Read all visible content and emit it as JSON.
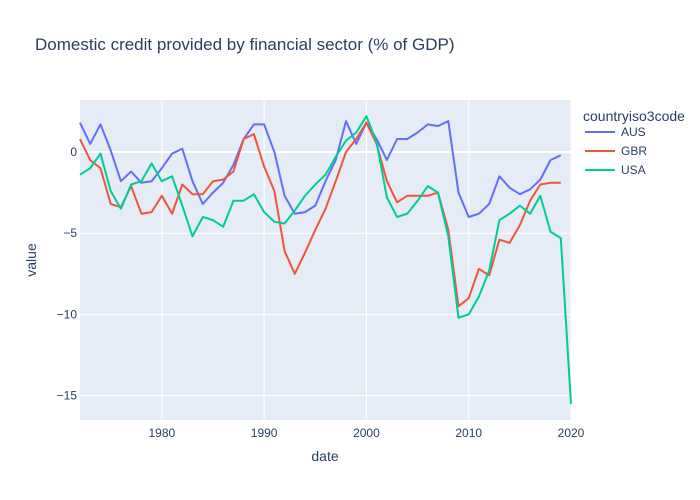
{
  "chart_data": {
    "type": "line",
    "title": "Domestic credit provided by financial sector (% of GDP)",
    "xlabel": "date",
    "ylabel": "value",
    "xlim": [
      1972,
      2020
    ],
    "ylim": [
      -16.5,
      3.2
    ],
    "x_ticks": [
      1980,
      1990,
      2000,
      2010,
      2020
    ],
    "y_ticks": [
      0,
      -5,
      -10,
      -15
    ],
    "grid": true,
    "legend": {
      "title": "countryiso3code",
      "placement": "top-right"
    },
    "plot_background": "#e5ecf6",
    "series": [
      {
        "name": "AUS",
        "color": "#636efa",
        "x": [
          1972,
          1973,
          1974,
          1975,
          1976,
          1977,
          1978,
          1979,
          1980,
          1981,
          1982,
          1983,
          1984,
          1985,
          1986,
          1987,
          1988,
          1989,
          1990,
          1991,
          1992,
          1993,
          1994,
          1995,
          1996,
          1997,
          1998,
          1999,
          2000,
          2001,
          2002,
          2003,
          2004,
          2005,
          2006,
          2007,
          2008,
          2009,
          2010,
          2011,
          2012,
          2013,
          2014,
          2015,
          2016,
          2017,
          2018,
          2019
        ],
        "y": [
          1.8,
          0.5,
          1.7,
          0.1,
          -1.8,
          -1.2,
          -1.9,
          -1.8,
          -1.0,
          -0.1,
          0.2,
          -1.8,
          -3.2,
          -2.5,
          -1.9,
          -0.8,
          0.8,
          1.7,
          1.7,
          0.0,
          -2.7,
          -3.8,
          -3.7,
          -3.3,
          -1.8,
          -0.5,
          1.9,
          0.5,
          1.8,
          0.8,
          -0.5,
          0.8,
          0.8,
          1.2,
          1.7,
          1.6,
          1.9,
          -2.5,
          -4.0,
          -3.8,
          -3.2,
          -1.5,
          -2.2,
          -2.6,
          -2.3,
          -1.7,
          -0.5,
          -0.2
        ]
      },
      {
        "name": "GBR",
        "color": "#ef553b",
        "x": [
          1972,
          1973,
          1974,
          1975,
          1976,
          1977,
          1978,
          1979,
          1980,
          1981,
          1982,
          1983,
          1984,
          1985,
          1986,
          1987,
          1988,
          1989,
          1990,
          1991,
          1992,
          1993,
          1994,
          1995,
          1996,
          1997,
          1998,
          1999,
          2000,
          2001,
          2002,
          2003,
          2004,
          2005,
          2006,
          2007,
          2008,
          2009,
          2010,
          2011,
          2012,
          2013,
          2014,
          2015,
          2016,
          2017,
          2018,
          2019
        ],
        "y": [
          0.8,
          -0.5,
          -1.0,
          -3.2,
          -3.4,
          -2.1,
          -3.8,
          -3.7,
          -2.7,
          -3.8,
          -2.0,
          -2.6,
          -2.6,
          -1.8,
          -1.7,
          -1.2,
          0.8,
          1.1,
          -0.9,
          -2.4,
          -6.1,
          -7.5,
          -6.2,
          -4.8,
          -3.5,
          -1.8,
          0.0,
          0.8,
          1.8,
          0.5,
          -1.8,
          -3.1,
          -2.7,
          -2.7,
          -2.7,
          -2.5,
          -4.8,
          -9.5,
          -9.0,
          -7.2,
          -7.6,
          -5.4,
          -5.6,
          -4.5,
          -3.0,
          -2.0,
          -1.9,
          -1.9
        ]
      },
      {
        "name": "USA",
        "color": "#00cc96",
        "x": [
          1972,
          1973,
          1974,
          1975,
          1976,
          1977,
          1978,
          1979,
          1980,
          1981,
          1982,
          1983,
          1984,
          1985,
          1986,
          1987,
          1988,
          1989,
          1990,
          1991,
          1992,
          1993,
          1994,
          1995,
          1996,
          1997,
          1998,
          1999,
          2000,
          2001,
          2002,
          2003,
          2004,
          2005,
          2006,
          2007,
          2008,
          2009,
          2010,
          2011,
          2012,
          2013,
          2014,
          2015,
          2016,
          2017,
          2018,
          2019,
          2020
        ],
        "y": [
          -1.4,
          -1.0,
          -0.1,
          -2.4,
          -3.5,
          -2.0,
          -1.8,
          -0.7,
          -1.8,
          -1.5,
          -3.3,
          -5.2,
          -4.0,
          -4.2,
          -4.6,
          -3.0,
          -3.0,
          -2.6,
          -3.7,
          -4.3,
          -4.4,
          -3.6,
          -2.7,
          -2.0,
          -1.4,
          -0.3,
          0.7,
          1.2,
          2.2,
          0.6,
          -2.8,
          -4.0,
          -3.8,
          -3.0,
          -2.1,
          -2.5,
          -5.2,
          -10.2,
          -10.0,
          -8.9,
          -7.3,
          -4.2,
          -3.8,
          -3.3,
          -3.8,
          -2.7,
          -4.9,
          -5.3,
          -15.5
        ]
      }
    ]
  }
}
